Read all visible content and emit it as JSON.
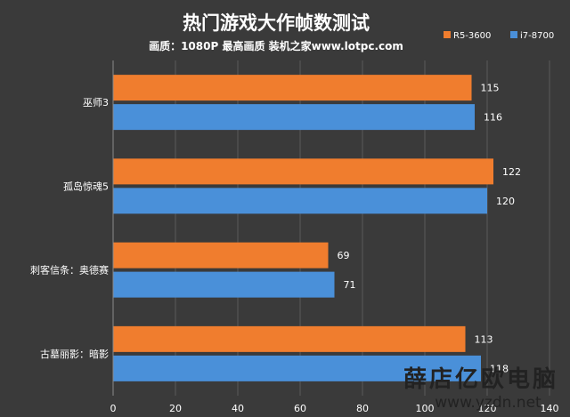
{
  "chart_data": {
    "type": "bar",
    "orientation": "horizontal",
    "title": "热门游戏大作帧数测试",
    "subtitle": "画质：1080P 最高画质 装机之家www.lotpc.com",
    "categories": [
      "巫师3",
      "孤岛惊魂5",
      "刺客信条：奥德赛",
      "古墓丽影：暗影"
    ],
    "series": [
      {
        "name": "R5-3600",
        "color": "#f07d2e",
        "values": [
          115,
          122,
          69,
          113
        ]
      },
      {
        "name": "i7-8700",
        "color": "#4a90d9",
        "values": [
          116,
          120,
          71,
          118
        ]
      }
    ],
    "xlim": [
      0,
      140
    ],
    "xticks": [
      0,
      20,
      40,
      60,
      80,
      100,
      120,
      140
    ],
    "grid": true,
    "legend_position": "top-right"
  },
  "watermark": {
    "text_cn": "薛店亿欧电脑",
    "text_en": "www.yzdn.net"
  }
}
